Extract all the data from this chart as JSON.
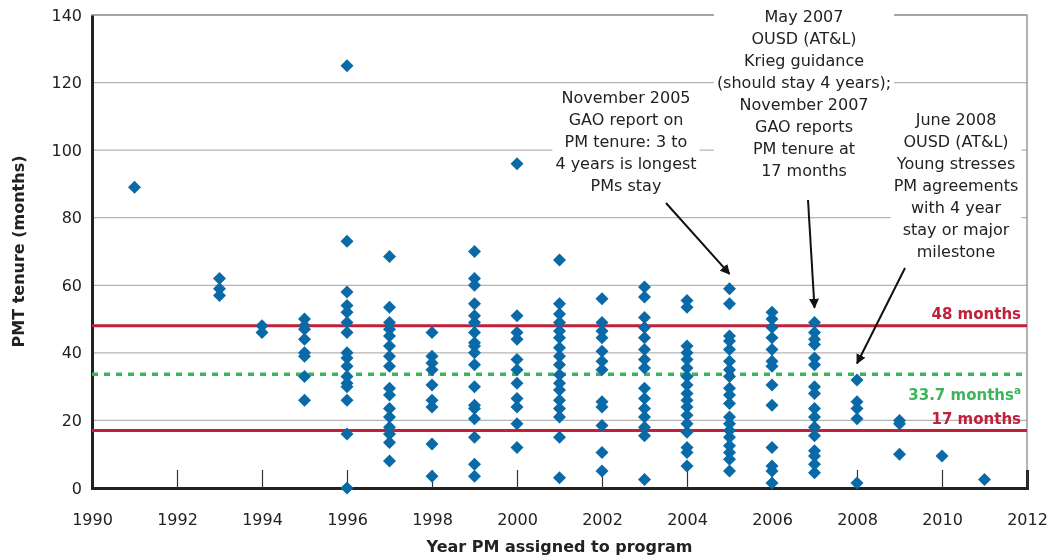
{
  "chart_data": {
    "type": "scatter",
    "xlabel": "Year PM assigned to program",
    "ylabel": "PMT tenure (months)",
    "xlim": [
      1990,
      2012
    ],
    "xticks": [
      1990,
      1992,
      1994,
      1996,
      1998,
      2000,
      2002,
      2004,
      2006,
      2008,
      2010,
      2012
    ],
    "ylim": [
      0,
      140
    ],
    "yticks": [
      0,
      20,
      40,
      60,
      80,
      100,
      120,
      140
    ],
    "grid": "y",
    "marker": "diamond",
    "series": [
      {
        "color": "#0a6aa8",
        "x": [
          1991,
          1993,
          1993,
          1993,
          1994,
          1994,
          1995,
          1995,
          1995,
          1995,
          1995,
          1995,
          1995,
          1995,
          1996,
          1996,
          1996,
          1996,
          1996,
          1996,
          1996,
          1996,
          1996,
          1996,
          1996,
          1996,
          1996,
          1996,
          1996,
          1996,
          1997,
          1997,
          1997,
          1997,
          1997,
          1997,
          1997,
          1997,
          1997,
          1997,
          1997,
          1997,
          1997,
          1997,
          1997,
          1997,
          1998,
          1998,
          1998,
          1998,
          1998,
          1998,
          1998,
          1998,
          1998,
          1999,
          1999,
          1999,
          1999,
          1999,
          1999,
          1999,
          1999,
          1999,
          1999,
          1999,
          1999,
          1999,
          1999,
          1999,
          1999,
          1999,
          1999,
          2000,
          2000,
          2000,
          2000,
          2000,
          2000,
          2000,
          2000,
          2000,
          2000,
          2000,
          2001,
          2001,
          2001,
          2001,
          2001,
          2001,
          2001,
          2001,
          2001,
          2001,
          2001,
          2001,
          2001,
          2001,
          2001,
          2001,
          2001,
          2002,
          2002,
          2002,
          2002,
          2002,
          2002,
          2002,
          2002,
          2002,
          2002,
          2002,
          2002,
          2003,
          2003,
          2003,
          2003,
          2003,
          2003,
          2003,
          2003,
          2003,
          2003,
          2003,
          2003,
          2003,
          2003,
          2003,
          2004,
          2004,
          2004,
          2004,
          2004,
          2004,
          2004,
          2004,
          2004,
          2004,
          2004,
          2004,
          2004,
          2004,
          2004,
          2004,
          2004,
          2005,
          2005,
          2005,
          2005,
          2005,
          2005,
          2005,
          2005,
          2005,
          2005,
          2005,
          2005,
          2005,
          2005,
          2005,
          2005,
          2005,
          2005,
          2005,
          2006,
          2006,
          2006,
          2006,
          2006,
          2006,
          2006,
          2006,
          2006,
          2006,
          2006,
          2006,
          2006,
          2007,
          2007,
          2007,
          2007,
          2007,
          2007,
          2007,
          2007,
          2007,
          2007,
          2007,
          2007,
          2007,
          2007,
          2007,
          2007,
          2008,
          2008,
          2008,
          2008,
          2008,
          2009,
          2009,
          2009,
          2010,
          2011
        ],
        "values": [
          89,
          62,
          59,
          57,
          48,
          46,
          50,
          48,
          47,
          44,
          40,
          39,
          33,
          26,
          125,
          73,
          58,
          54,
          52,
          49,
          46,
          40,
          38.5,
          36,
          33,
          31,
          30,
          26,
          16,
          0,
          68.5,
          53.5,
          49,
          47,
          45,
          42,
          39,
          36,
          29.5,
          27.5,
          23.5,
          21,
          18,
          16,
          13.5,
          8,
          46,
          39,
          37,
          35,
          30.5,
          26,
          24,
          13,
          3.5,
          70,
          62,
          60,
          54.5,
          51,
          49,
          46,
          43,
          42,
          40,
          36.5,
          30,
          24.5,
          23.5,
          20.5,
          15,
          7,
          3.5,
          96,
          51,
          46,
          44,
          38,
          35,
          31,
          26.5,
          24,
          19,
          12,
          67.5,
          54.5,
          51.5,
          49,
          46.5,
          44.5,
          41.5,
          39,
          36.5,
          33.5,
          31,
          29,
          26,
          23.5,
          21,
          15,
          3,
          56,
          49,
          46.5,
          44.5,
          40.5,
          37.5,
          35,
          25.5,
          24,
          18.5,
          10.5,
          5,
          59.5,
          56.5,
          50.5,
          47.5,
          44.5,
          41,
          38,
          35.5,
          29.5,
          26.5,
          23.5,
          21,
          18,
          15.5,
          2.5,
          55.5,
          53.5,
          42,
          40,
          38,
          35.5,
          33,
          30.5,
          28,
          26,
          24,
          21.5,
          19,
          16.5,
          12,
          10.5,
          6.5,
          59,
          54.5,
          45,
          43.5,
          41,
          37.5,
          35,
          33,
          29.5,
          27.5,
          25,
          21,
          19,
          17,
          15,
          12.5,
          10.5,
          8.5,
          5,
          52,
          50,
          47.5,
          44.5,
          41,
          37.5,
          36,
          30.5,
          24.5,
          12,
          6.5,
          5,
          1.5,
          49,
          46,
          44,
          42.5,
          38.5,
          36.5,
          30,
          28,
          23.5,
          21,
          18,
          15.5,
          11,
          9.5,
          7,
          4.5,
          32,
          25.5,
          23.5,
          20.5,
          1.5,
          20,
          19,
          10,
          9.5,
          2.5
        ]
      }
    ],
    "ref_lines": [
      {
        "axis": "y",
        "value": 48,
        "label": "48 months",
        "color": "#c0203a",
        "line_style": "solid"
      },
      {
        "axis": "y",
        "value": 33.7,
        "label": "33.7 months$^{a}$",
        "color": "#3cb55a",
        "line_style": "dotted"
      },
      {
        "axis": "y",
        "value": 17,
        "label": "17 months",
        "color": "#c0203a",
        "line_style": "solid"
      }
    ],
    "annotations": [
      {
        "text": "November 2005\nGAO report on\nPM tenure: 3 to\n4 years is longest\nPMs stay",
        "x": 2005,
        "y": 61
      },
      {
        "text": "May 2007\nOUSD (AT&L)\nKrieg guidance\n(should stay 4 years);\nNovember 2007\nGAO reports\nPM tenure at\n17 months",
        "x": 2007,
        "y": 51
      },
      {
        "text": "June 2008\nOUSD (AT&L)\nYoung stresses\nPM agreements\nwith 4 year\nstay or major\nmilestone",
        "x": 2008,
        "y": 34.5
      }
    ]
  }
}
